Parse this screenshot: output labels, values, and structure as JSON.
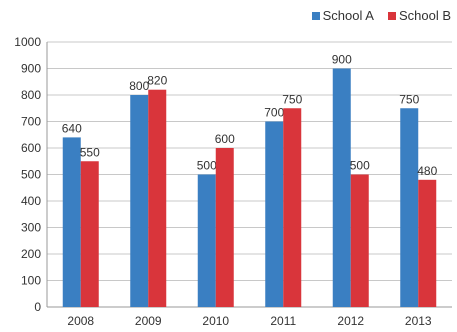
{
  "chart_data": {
    "type": "bar",
    "categories": [
      "2008",
      "2009",
      "2010",
      "2011",
      "2012",
      "2013"
    ],
    "series": [
      {
        "name": "School A",
        "values": [
          640,
          800,
          500,
          700,
          900,
          750
        ],
        "color": "#3a7fc2"
      },
      {
        "name": "School B",
        "values": [
          550,
          820,
          600,
          750,
          500,
          480
        ],
        "color": "#d9353b"
      }
    ],
    "yticks": [
      0,
      100,
      200,
      300,
      400,
      500,
      600,
      700,
      800,
      900,
      1000
    ],
    "ylim": [
      0,
      1000
    ],
    "grid": true,
    "legend": "top-right",
    "title": "",
    "xlabel": "",
    "ylabel": ""
  }
}
